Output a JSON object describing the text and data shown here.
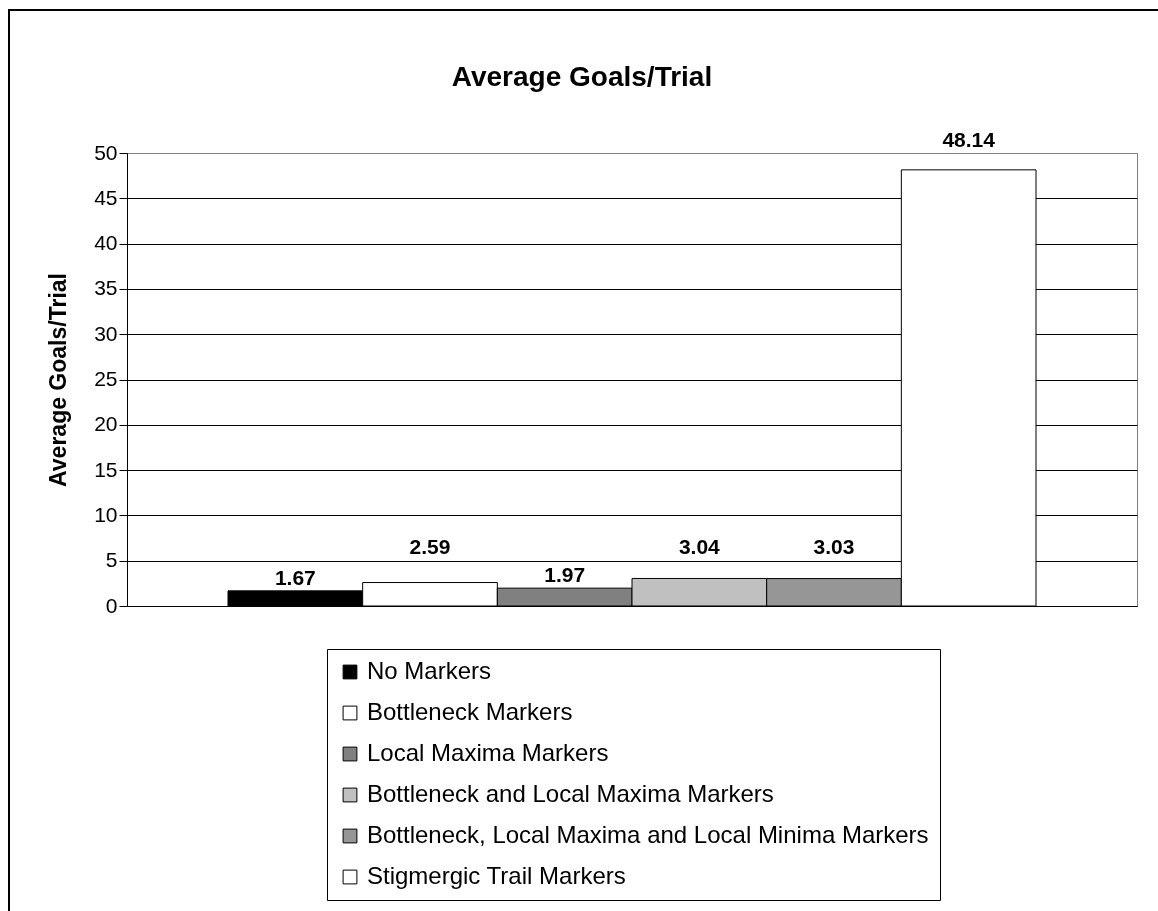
{
  "chart_data": {
    "type": "bar",
    "title": "Average Goals/Trial",
    "ylabel": "Average Goals/Trial",
    "categories": [
      null
    ],
    "series": [
      {
        "name": "No Markers",
        "color": "#000000",
        "values": [
          1.67
        ]
      },
      {
        "name": "Bottleneck Markers",
        "color": "#ffffff",
        "values": [
          2.59
        ]
      },
      {
        "name": "Local Maxima Markers",
        "color": "#808080",
        "values": [
          1.97
        ]
      },
      {
        "name": "Bottleneck and Local Maxima Markers",
        "color": "#c0c0c0",
        "values": [
          3.04
        ]
      },
      {
        "name": "Bottleneck, Local Maxima and Local Minima Markers",
        "color": "#969696",
        "values": [
          3.03
        ]
      },
      {
        "name": "Stigmergic Trail Markers",
        "color": "#ffffff",
        "values": [
          48.14
        ]
      }
    ],
    "ylim": [
      0,
      50
    ],
    "yticks": [
      0,
      5,
      10,
      15,
      20,
      25,
      30,
      35,
      40,
      45,
      50
    ],
    "grid": "y",
    "legend": "bottom",
    "data_labels": true
  }
}
